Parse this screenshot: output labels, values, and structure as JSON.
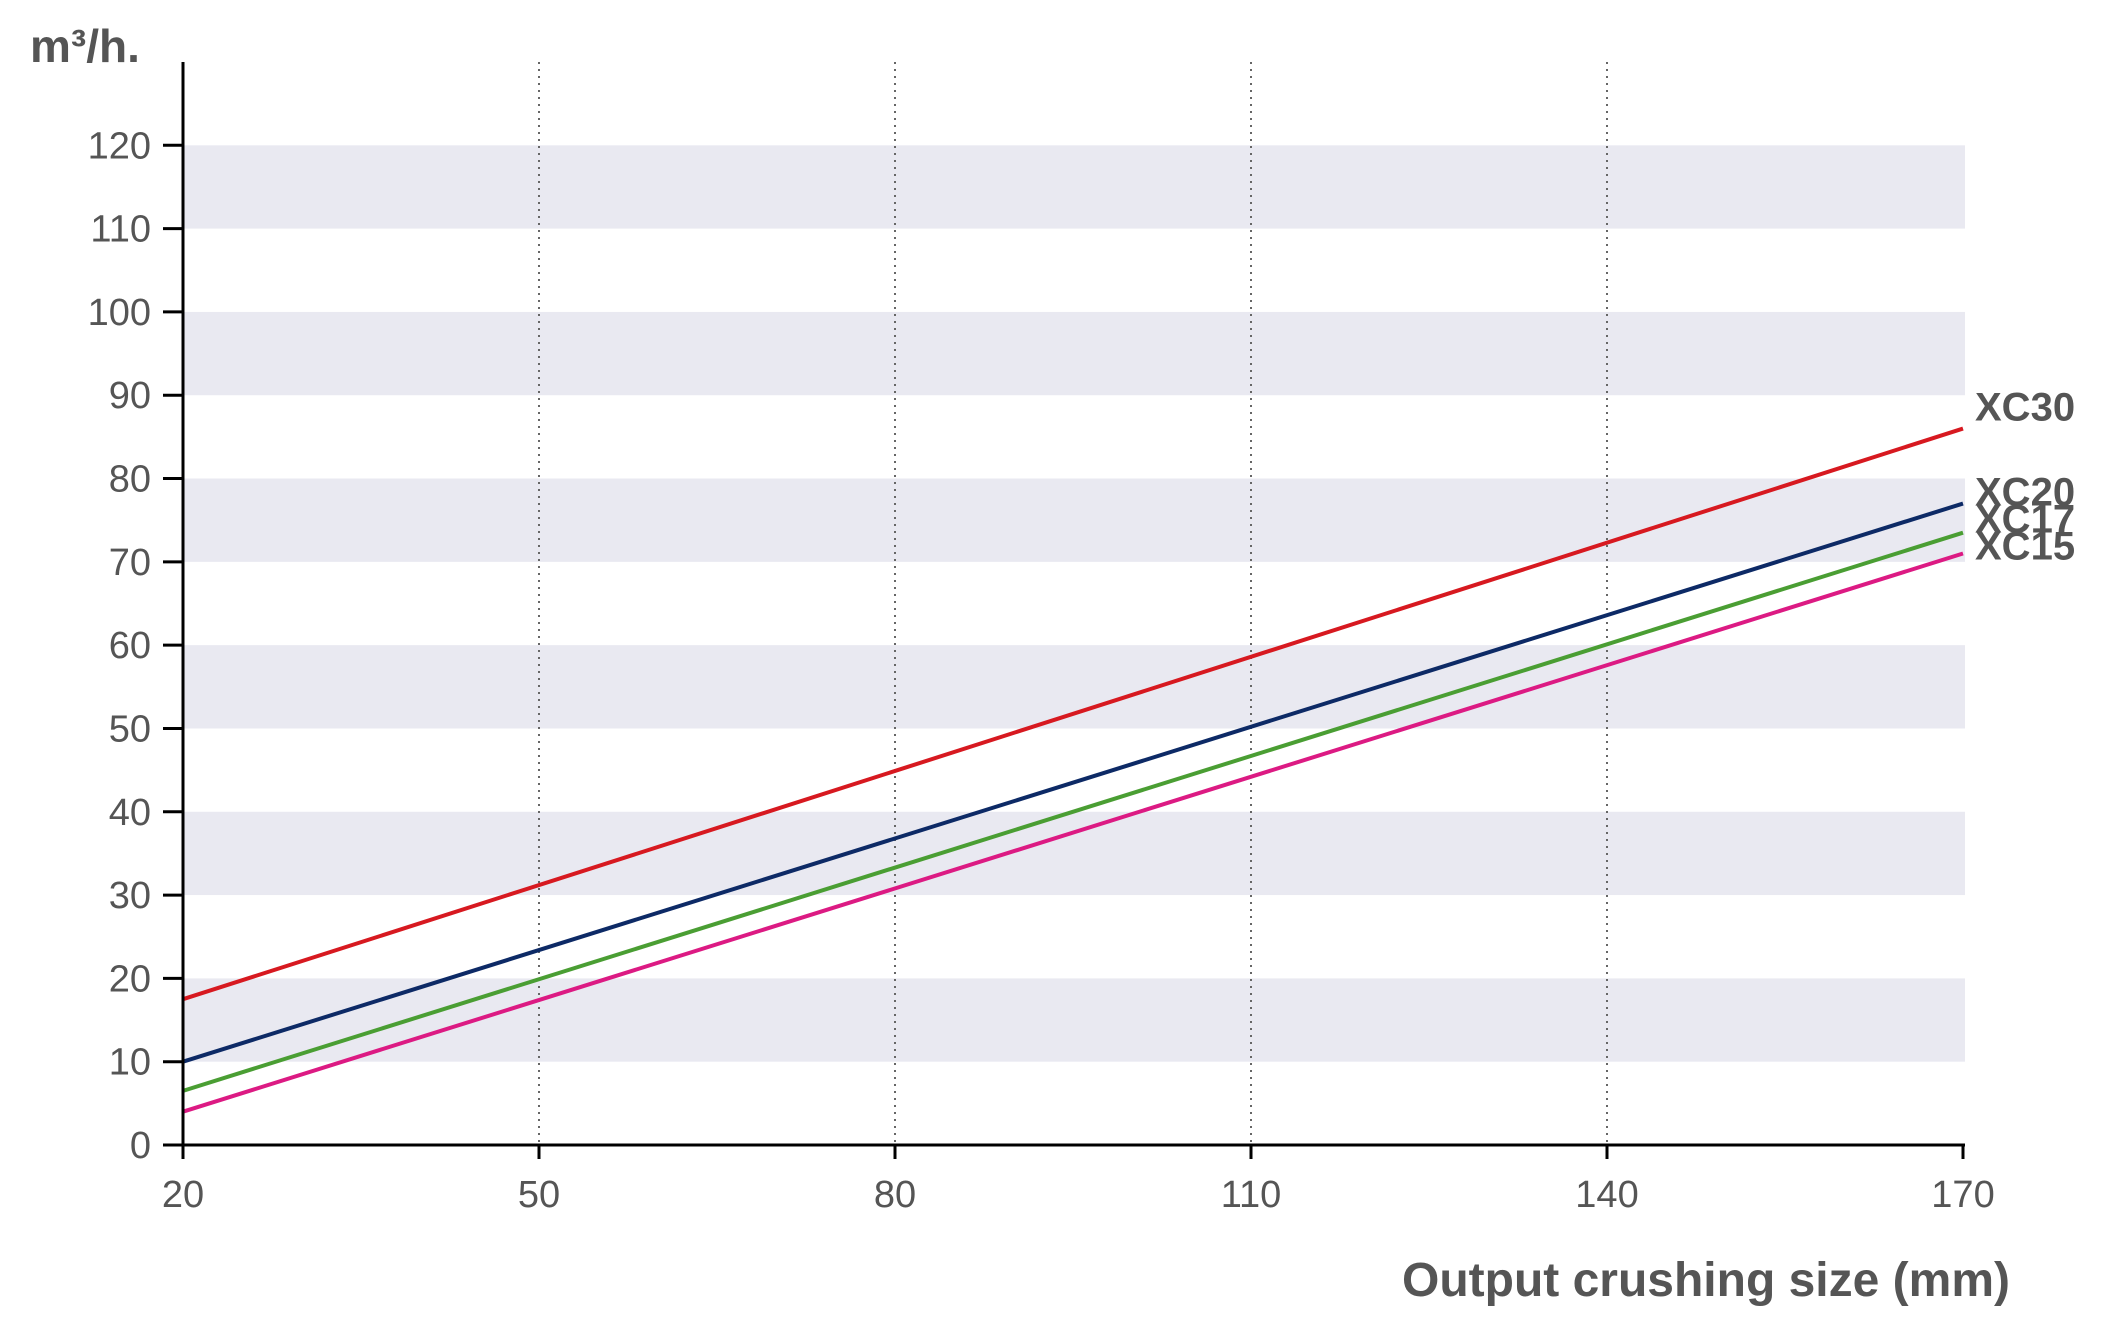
{
  "chart_data": {
    "type": "line",
    "title": "",
    "xlabel": "Output crushing size (mm)",
    "ylabel": "m³/h.",
    "xlim": [
      20,
      170
    ],
    "ylim": [
      0,
      130
    ],
    "x_ticks": [
      20,
      50,
      80,
      110,
      140,
      170
    ],
    "y_ticks": [
      0,
      10,
      20,
      30,
      40,
      50,
      60,
      70,
      80,
      90,
      100,
      110,
      120
    ],
    "x_grid": "dotted vertical at x ticks",
    "y_grid": "alternating horizontal bands",
    "legend": "direct labels at right end of lines",
    "series": [
      {
        "name": "XC30",
        "color": "#d71920",
        "x": [
          20,
          170
        ],
        "y": [
          17.5,
          86
        ]
      },
      {
        "name": "XC20",
        "color": "#0d2a66",
        "x": [
          20,
          170
        ],
        "y": [
          10,
          77
        ]
      },
      {
        "name": "XC17",
        "color": "#4a9e33",
        "x": [
          20,
          170
        ],
        "y": [
          6.5,
          73.5
        ]
      },
      {
        "name": "XC15",
        "color": "#dc1a83",
        "x": [
          20,
          170
        ],
        "y": [
          4,
          71
        ]
      }
    ],
    "band_color": "#e9e9f1",
    "axis_color": "#000000",
    "text_color": "#555555"
  }
}
